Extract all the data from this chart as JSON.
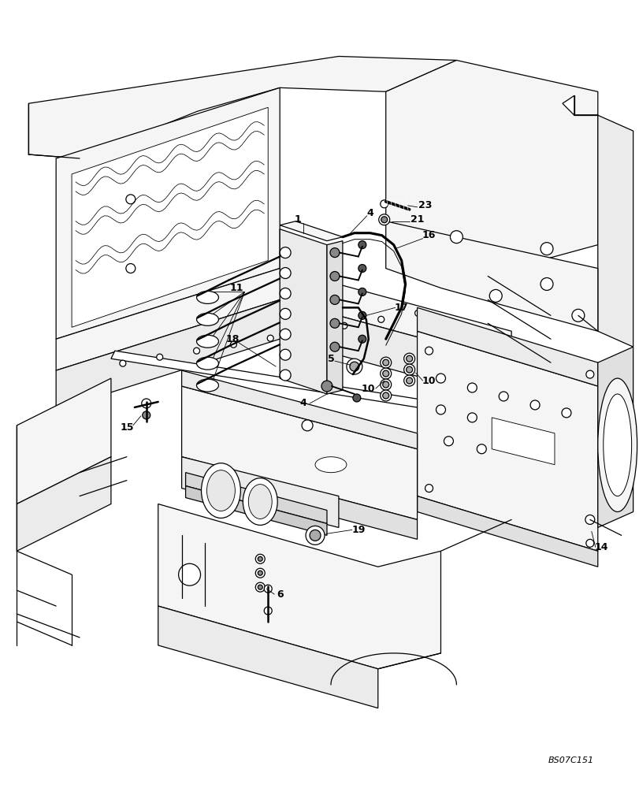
{
  "background_color": "#ffffff",
  "figure_code": "BS07C151",
  "line_color": "#000000",
  "lw": 0.9
}
